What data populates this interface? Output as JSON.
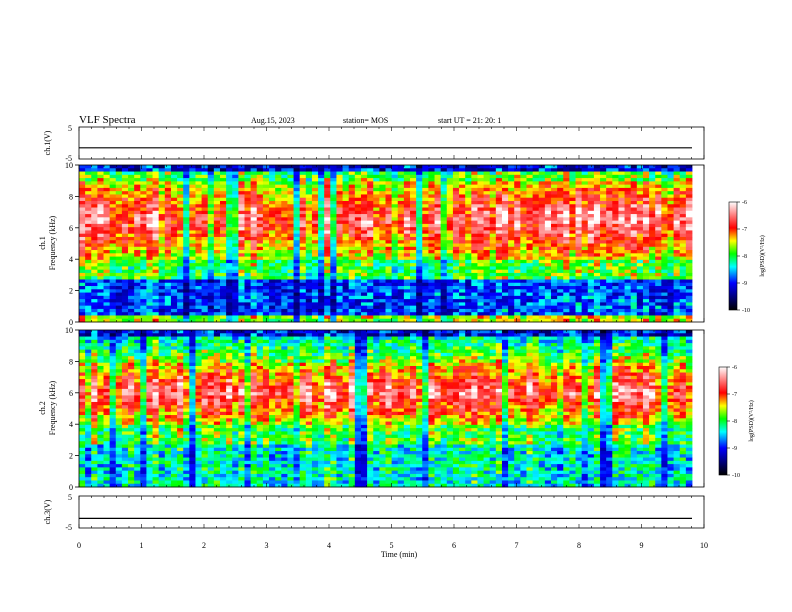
{
  "header": {
    "title": "VLF Spectra",
    "date": "Aug.15, 2023",
    "station": "station= MOS",
    "start_ut": "start  UT  =   21: 20: 1"
  },
  "chart_data": [
    {
      "id": "ch1_waveform",
      "type": "line",
      "ylabel": "ch.1(V)",
      "ylim": [
        -5,
        5
      ],
      "y_tick_labels": [
        "5",
        "-5"
      ],
      "xlim": [
        0,
        10
      ],
      "trace_level": -1.5
    },
    {
      "id": "ch1_spectrogram",
      "type": "heatmap",
      "ylabel_line1": "ch.1",
      "ylabel_line2": "Frequency (kHz)",
      "ylim": [
        0,
        10
      ],
      "y_ticks": [
        0,
        2,
        4,
        6,
        8,
        10
      ],
      "xlim": [
        0,
        9.85
      ],
      "intense_band_khz": [
        4,
        9
      ],
      "colorbar": {
        "label": "log(PSD)(V²/Hz)",
        "range": [
          -10,
          -6
        ],
        "ticks": [
          "-6",
          "-7",
          "-8",
          "-9",
          "-10"
        ]
      }
    },
    {
      "id": "ch2_spectrogram",
      "type": "heatmap",
      "ylabel_line1": "ch.2",
      "ylabel_line2": "Frequency (kHz)",
      "ylim": [
        0,
        10
      ],
      "y_ticks": [
        0,
        2,
        4,
        6,
        8,
        10
      ],
      "xlim": [
        0,
        9.85
      ],
      "intense_band_khz": [
        4,
        8
      ],
      "colorbar": {
        "label": "log(PSD)(V²/Hz)",
        "range": [
          -10,
          -6
        ],
        "ticks": [
          "-6",
          "-7",
          "-8",
          "-9",
          "-10"
        ]
      }
    },
    {
      "id": "ch3_waveform",
      "type": "line",
      "ylabel": "ch.3(V)",
      "ylim": [
        -5,
        5
      ],
      "y_tick_labels": [
        "5",
        "-5"
      ],
      "xlim": [
        0,
        10
      ],
      "trace_level": -2
    }
  ],
  "x_axis": {
    "label": "Time  (min)",
    "ticks": [
      "0",
      "1",
      "2",
      "3",
      "4",
      "5",
      "6",
      "7",
      "8",
      "9",
      "10"
    ],
    "range": [
      0,
      10
    ]
  },
  "colors": {
    "colormap": [
      "#000000",
      "#00007a",
      "#0000ff",
      "#00ffff",
      "#00ff00",
      "#ffff00",
      "#ff0000",
      "#ffffff"
    ]
  }
}
